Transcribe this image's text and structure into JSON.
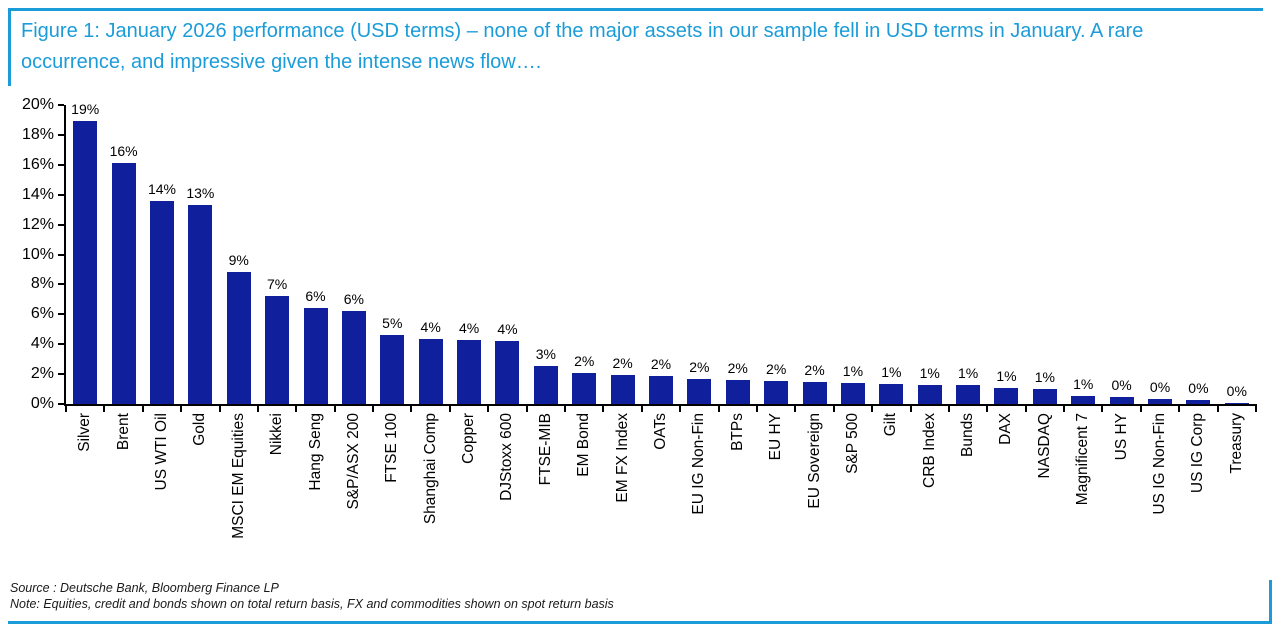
{
  "figure": {
    "title": "Figure 1: January 2026 performance (USD terms) – none of the major assets in our sample fell in USD terms in January. A rare occurrence, and impressive given the intense news flow….",
    "source": "Source : Deutsche Bank, Bloomberg Finance LP",
    "note": "Note: Equities, credit and bonds shown on total return basis, FX and commodities shown on spot return basis"
  },
  "colors": {
    "accent_blue": "#1B9CD9",
    "bar_navy": "#101F9B",
    "axis_black": "#000000",
    "footer_text": "#1a1a1a"
  },
  "chart_data": {
    "type": "bar",
    "title": "January 2026 performance (USD terms)",
    "xlabel": "",
    "ylabel": "",
    "ylim": [
      0,
      20
    ],
    "ytick_step": 2,
    "ytick_labels": [
      "0%",
      "2%",
      "4%",
      "6%",
      "8%",
      "10%",
      "12%",
      "14%",
      "16%",
      "18%",
      "20%"
    ],
    "grid": false,
    "legend": null,
    "categories": [
      "Silver",
      "Brent",
      "US WTI Oil",
      "Gold",
      "MSCI EM Equities",
      "Nikkei",
      "Hang Seng",
      "S&P/ASX 200",
      "FTSE 100",
      "Shanghai Comp",
      "Copper",
      "DJStoxx 600",
      "FTSE-MIB",
      "EM Bond",
      "EM FX Index",
      "OATs",
      "EU IG Non-Fin",
      "BTPs",
      "EU HY",
      "EU Sovereign",
      "S&P 500",
      "Gilt",
      "CRB Index",
      "Bunds",
      "DAX",
      "NASDAQ",
      "Magnificent 7",
      "US HY",
      "US IG Non-Fin",
      "US IG Corp",
      "Treasury"
    ],
    "values": [
      18.9,
      16.15,
      13.55,
      13.3,
      8.85,
      7.25,
      6.45,
      6.2,
      4.6,
      4.35,
      4.25,
      4.2,
      2.55,
      2.1,
      1.95,
      1.9,
      1.65,
      1.6,
      1.55,
      1.5,
      1.4,
      1.35,
      1.3,
      1.25,
      1.1,
      1.0,
      0.55,
      0.5,
      0.35,
      0.3,
      0.05
    ],
    "value_labels": [
      "19%",
      "16%",
      "14%",
      "13%",
      "9%",
      "7%",
      "6%",
      "6%",
      "5%",
      "4%",
      "4%",
      "4%",
      "3%",
      "2%",
      "2%",
      "2%",
      "2%",
      "2%",
      "2%",
      "2%",
      "1%",
      "1%",
      "1%",
      "1%",
      "1%",
      "1%",
      "1%",
      "0%",
      "0%",
      "0%",
      "0%"
    ]
  }
}
